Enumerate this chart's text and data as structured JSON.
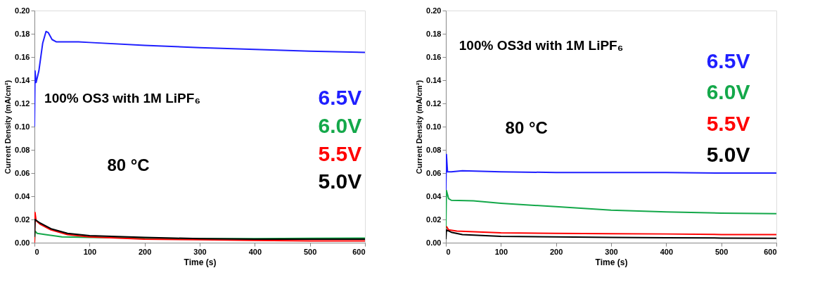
{
  "chart_data": [
    {
      "type": "line",
      "xlabel": "Time (s)",
      "ylabel": "Current Density (mA/cm²)",
      "xlim": [
        0,
        600
      ],
      "ylim": [
        0,
        0.2
      ],
      "xticks": [
        0,
        100,
        200,
        300,
        400,
        500,
        600
      ],
      "yticks": [
        {
          "value": 0,
          "label": "0.00"
        },
        {
          "value": 0.02,
          "label": "0.02"
        },
        {
          "value": 0.04,
          "label": "0.04"
        },
        {
          "value": 0.06,
          "label": "0.06"
        },
        {
          "value": 0.08,
          "label": "0.08"
        },
        {
          "value": 0.1,
          "label": "0.10"
        },
        {
          "value": 0.12,
          "label": "0.12"
        },
        {
          "value": 0.14,
          "label": "0.14"
        },
        {
          "value": 0.16,
          "label": "0.16"
        },
        {
          "value": 0.18,
          "label": "0.18"
        },
        {
          "value": 0.2,
          "label": "0.20"
        }
      ],
      "grid": false,
      "legend": "right",
      "annotations": [
        "100% OS3 with 1M LiPF₆",
        "80 °C"
      ],
      "series": [
        {
          "name": "6.5V",
          "color": "#1f1fff",
          "x": [
            0,
            1,
            3,
            8,
            15,
            21,
            25,
            32,
            40,
            80,
            100,
            200,
            300,
            400,
            500,
            600
          ],
          "values": [
            0.1,
            0.148,
            0.138,
            0.148,
            0.172,
            0.182,
            0.181,
            0.175,
            0.173,
            0.173,
            0.1725,
            0.17,
            0.168,
            0.1665,
            0.165,
            0.164
          ]
        },
        {
          "name": "6.0V",
          "color": "#14a84a",
          "x": [
            0,
            1,
            5,
            20,
            50,
            100,
            200,
            300,
            400,
            500,
            600
          ],
          "values": [
            0,
            0.01,
            0.008,
            0.007,
            0.005,
            0.0045,
            0.004,
            0.0035,
            0.0035,
            0.0038,
            0.004
          ]
        },
        {
          "name": "5.5V",
          "color": "#ff0000",
          "x": [
            0,
            1,
            3,
            10,
            30,
            60,
            100,
            200,
            300,
            400,
            500,
            600
          ],
          "values": [
            0,
            0.026,
            0.019,
            0.016,
            0.011,
            0.007,
            0.005,
            0.003,
            0.0025,
            0.002,
            0.0015,
            0.0015
          ]
        },
        {
          "name": "5.0V",
          "color": "#000000",
          "x": [
            0,
            1,
            10,
            30,
            60,
            100,
            200,
            300,
            400,
            500,
            600
          ],
          "values": [
            0.005,
            0.02,
            0.017,
            0.012,
            0.008,
            0.006,
            0.0045,
            0.0035,
            0.003,
            0.003,
            0.003
          ]
        }
      ]
    },
    {
      "type": "line",
      "xlabel": "Time (s)",
      "ylabel": "Current Density (mA/cm²)",
      "xlim": [
        0,
        600
      ],
      "ylim": [
        0,
        0.2
      ],
      "xticks": [
        0,
        100,
        200,
        300,
        400,
        500,
        600
      ],
      "yticks": [
        {
          "value": 0,
          "label": "0.00"
        },
        {
          "value": 0.02,
          "label": "0.02"
        },
        {
          "value": 0.04,
          "label": "0.04"
        },
        {
          "value": 0.06,
          "label": "0.06"
        },
        {
          "value": 0.08,
          "label": "0.08"
        },
        {
          "value": 0.1,
          "label": "0.10"
        },
        {
          "value": 0.12,
          "label": "0.12"
        },
        {
          "value": 0.14,
          "label": "0.14"
        },
        {
          "value": 0.16,
          "label": "0.16"
        },
        {
          "value": 0.18,
          "label": "0.18"
        },
        {
          "value": 0.2,
          "label": "0.20"
        }
      ],
      "grid": false,
      "legend": "right",
      "annotations": [
        "100% OS3d with 1M LiPF₆",
        "80 °C"
      ],
      "series": [
        {
          "name": "6.5V",
          "color": "#1f1fff",
          "x": [
            0,
            1,
            3,
            10,
            30,
            100,
            200,
            300,
            400,
            500,
            600
          ],
          "values": [
            0.045,
            0.076,
            0.061,
            0.061,
            0.062,
            0.061,
            0.0605,
            0.0605,
            0.0605,
            0.06,
            0.06
          ]
        },
        {
          "name": "6.0V",
          "color": "#14a84a",
          "x": [
            0,
            1,
            5,
            10,
            50,
            100,
            200,
            300,
            400,
            500,
            600
          ],
          "values": [
            0.012,
            0.045,
            0.038,
            0.0365,
            0.036,
            0.034,
            0.031,
            0.028,
            0.0265,
            0.0255,
            0.025
          ]
        },
        {
          "name": "5.5V",
          "color": "#ff0000",
          "x": [
            1,
            5,
            20,
            100,
            200,
            300,
            400,
            500,
            600
          ],
          "values": [
            0.014,
            0.011,
            0.01,
            0.0085,
            0.008,
            0.0078,
            0.0075,
            0.007,
            0.007
          ]
        },
        {
          "name": "5.0V",
          "color": "#000000",
          "x": [
            0,
            1,
            10,
            30,
            100,
            200,
            300,
            400,
            500,
            600
          ],
          "values": [
            0.003,
            0.011,
            0.009,
            0.007,
            0.0055,
            0.005,
            0.0045,
            0.0043,
            0.004,
            0.0038
          ]
        }
      ]
    }
  ]
}
